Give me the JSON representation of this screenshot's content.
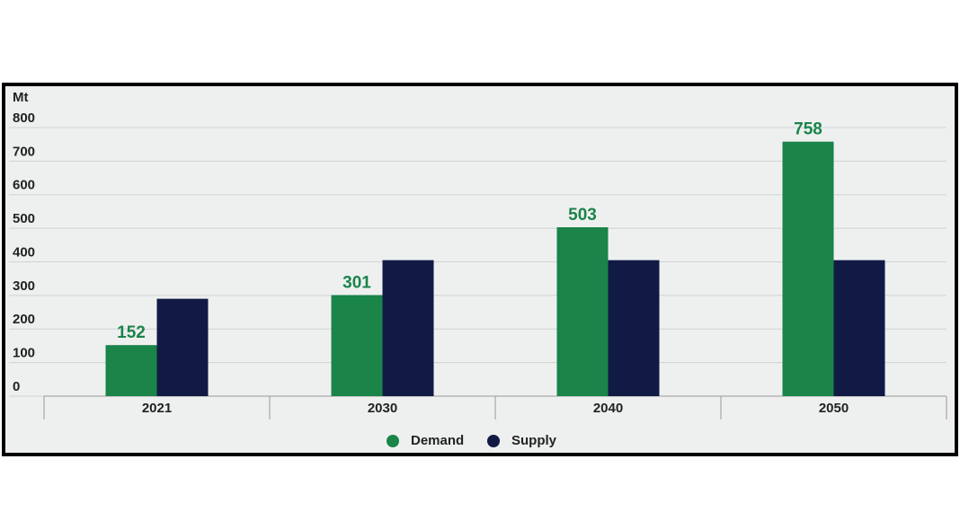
{
  "chart_data": {
    "type": "bar",
    "y_label": "Mt",
    "categories": [
      "2021",
      "2030",
      "2040",
      "2050"
    ],
    "series": [
      {
        "name": "Demand",
        "color": "#1a8449",
        "values": [
          152,
          301,
          503,
          758
        ],
        "show_values": true
      },
      {
        "name": "Supply",
        "color": "#111a45",
        "values": [
          290,
          405,
          405,
          405
        ],
        "show_values": false
      }
    ],
    "ylim": [
      0,
      800
    ],
    "yticks": [
      0,
      100,
      200,
      300,
      400,
      500,
      600,
      700,
      800
    ],
    "grid": true,
    "legend": "bottom"
  }
}
